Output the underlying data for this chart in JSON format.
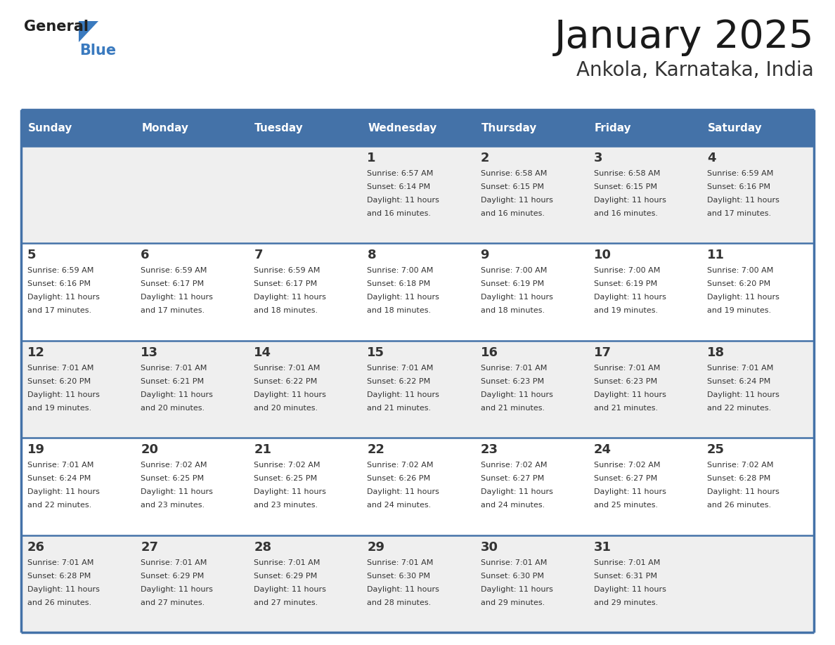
{
  "title": "January 2025",
  "subtitle": "Ankola, Karnataka, India",
  "header_color": "#4472a8",
  "header_text_color": "#ffffff",
  "cell_bg_light": "#efefef",
  "cell_bg_white": "#ffffff",
  "day_headers": [
    "Sunday",
    "Monday",
    "Tuesday",
    "Wednesday",
    "Thursday",
    "Friday",
    "Saturday"
  ],
  "border_color": "#4472a8",
  "logo_general_color": "#222222",
  "logo_blue_color": "#3a7abf",
  "logo_triangle_color": "#3a7abf",
  "title_color": "#1a1a1a",
  "subtitle_color": "#333333",
  "day_num_color": "#333333",
  "cell_text_color": "#333333",
  "days": [
    {
      "day": 1,
      "col": 3,
      "row": 0,
      "sunrise": "6:57 AM",
      "sunset": "6:14 PM",
      "daylight": "11 hours and 16 minutes."
    },
    {
      "day": 2,
      "col": 4,
      "row": 0,
      "sunrise": "6:58 AM",
      "sunset": "6:15 PM",
      "daylight": "11 hours and 16 minutes."
    },
    {
      "day": 3,
      "col": 5,
      "row": 0,
      "sunrise": "6:58 AM",
      "sunset": "6:15 PM",
      "daylight": "11 hours and 16 minutes."
    },
    {
      "day": 4,
      "col": 6,
      "row": 0,
      "sunrise": "6:59 AM",
      "sunset": "6:16 PM",
      "daylight": "11 hours and 17 minutes."
    },
    {
      "day": 5,
      "col": 0,
      "row": 1,
      "sunrise": "6:59 AM",
      "sunset": "6:16 PM",
      "daylight": "11 hours and 17 minutes."
    },
    {
      "day": 6,
      "col": 1,
      "row": 1,
      "sunrise": "6:59 AM",
      "sunset": "6:17 PM",
      "daylight": "11 hours and 17 minutes."
    },
    {
      "day": 7,
      "col": 2,
      "row": 1,
      "sunrise": "6:59 AM",
      "sunset": "6:17 PM",
      "daylight": "11 hours and 18 minutes."
    },
    {
      "day": 8,
      "col": 3,
      "row": 1,
      "sunrise": "7:00 AM",
      "sunset": "6:18 PM",
      "daylight": "11 hours and 18 minutes."
    },
    {
      "day": 9,
      "col": 4,
      "row": 1,
      "sunrise": "7:00 AM",
      "sunset": "6:19 PM",
      "daylight": "11 hours and 18 minutes."
    },
    {
      "day": 10,
      "col": 5,
      "row": 1,
      "sunrise": "7:00 AM",
      "sunset": "6:19 PM",
      "daylight": "11 hours and 19 minutes."
    },
    {
      "day": 11,
      "col": 6,
      "row": 1,
      "sunrise": "7:00 AM",
      "sunset": "6:20 PM",
      "daylight": "11 hours and 19 minutes."
    },
    {
      "day": 12,
      "col": 0,
      "row": 2,
      "sunrise": "7:01 AM",
      "sunset": "6:20 PM",
      "daylight": "11 hours and 19 minutes."
    },
    {
      "day": 13,
      "col": 1,
      "row": 2,
      "sunrise": "7:01 AM",
      "sunset": "6:21 PM",
      "daylight": "11 hours and 20 minutes."
    },
    {
      "day": 14,
      "col": 2,
      "row": 2,
      "sunrise": "7:01 AM",
      "sunset": "6:22 PM",
      "daylight": "11 hours and 20 minutes."
    },
    {
      "day": 15,
      "col": 3,
      "row": 2,
      "sunrise": "7:01 AM",
      "sunset": "6:22 PM",
      "daylight": "11 hours and 21 minutes."
    },
    {
      "day": 16,
      "col": 4,
      "row": 2,
      "sunrise": "7:01 AM",
      "sunset": "6:23 PM",
      "daylight": "11 hours and 21 minutes."
    },
    {
      "day": 17,
      "col": 5,
      "row": 2,
      "sunrise": "7:01 AM",
      "sunset": "6:23 PM",
      "daylight": "11 hours and 21 minutes."
    },
    {
      "day": 18,
      "col": 6,
      "row": 2,
      "sunrise": "7:01 AM",
      "sunset": "6:24 PM",
      "daylight": "11 hours and 22 minutes."
    },
    {
      "day": 19,
      "col": 0,
      "row": 3,
      "sunrise": "7:01 AM",
      "sunset": "6:24 PM",
      "daylight": "11 hours and 22 minutes."
    },
    {
      "day": 20,
      "col": 1,
      "row": 3,
      "sunrise": "7:02 AM",
      "sunset": "6:25 PM",
      "daylight": "11 hours and 23 minutes."
    },
    {
      "day": 21,
      "col": 2,
      "row": 3,
      "sunrise": "7:02 AM",
      "sunset": "6:25 PM",
      "daylight": "11 hours and 23 minutes."
    },
    {
      "day": 22,
      "col": 3,
      "row": 3,
      "sunrise": "7:02 AM",
      "sunset": "6:26 PM",
      "daylight": "11 hours and 24 minutes."
    },
    {
      "day": 23,
      "col": 4,
      "row": 3,
      "sunrise": "7:02 AM",
      "sunset": "6:27 PM",
      "daylight": "11 hours and 24 minutes."
    },
    {
      "day": 24,
      "col": 5,
      "row": 3,
      "sunrise": "7:02 AM",
      "sunset": "6:27 PM",
      "daylight": "11 hours and 25 minutes."
    },
    {
      "day": 25,
      "col": 6,
      "row": 3,
      "sunrise": "7:02 AM",
      "sunset": "6:28 PM",
      "daylight": "11 hours and 26 minutes."
    },
    {
      "day": 26,
      "col": 0,
      "row": 4,
      "sunrise": "7:01 AM",
      "sunset": "6:28 PM",
      "daylight": "11 hours and 26 minutes."
    },
    {
      "day": 27,
      "col": 1,
      "row": 4,
      "sunrise": "7:01 AM",
      "sunset": "6:29 PM",
      "daylight": "11 hours and 27 minutes."
    },
    {
      "day": 28,
      "col": 2,
      "row": 4,
      "sunrise": "7:01 AM",
      "sunset": "6:29 PM",
      "daylight": "11 hours and 27 minutes."
    },
    {
      "day": 29,
      "col": 3,
      "row": 4,
      "sunrise": "7:01 AM",
      "sunset": "6:30 PM",
      "daylight": "11 hours and 28 minutes."
    },
    {
      "day": 30,
      "col": 4,
      "row": 4,
      "sunrise": "7:01 AM",
      "sunset": "6:30 PM",
      "daylight": "11 hours and 29 minutes."
    },
    {
      "day": 31,
      "col": 5,
      "row": 4,
      "sunrise": "7:01 AM",
      "sunset": "6:31 PM",
      "daylight": "11 hours and 29 minutes."
    }
  ]
}
